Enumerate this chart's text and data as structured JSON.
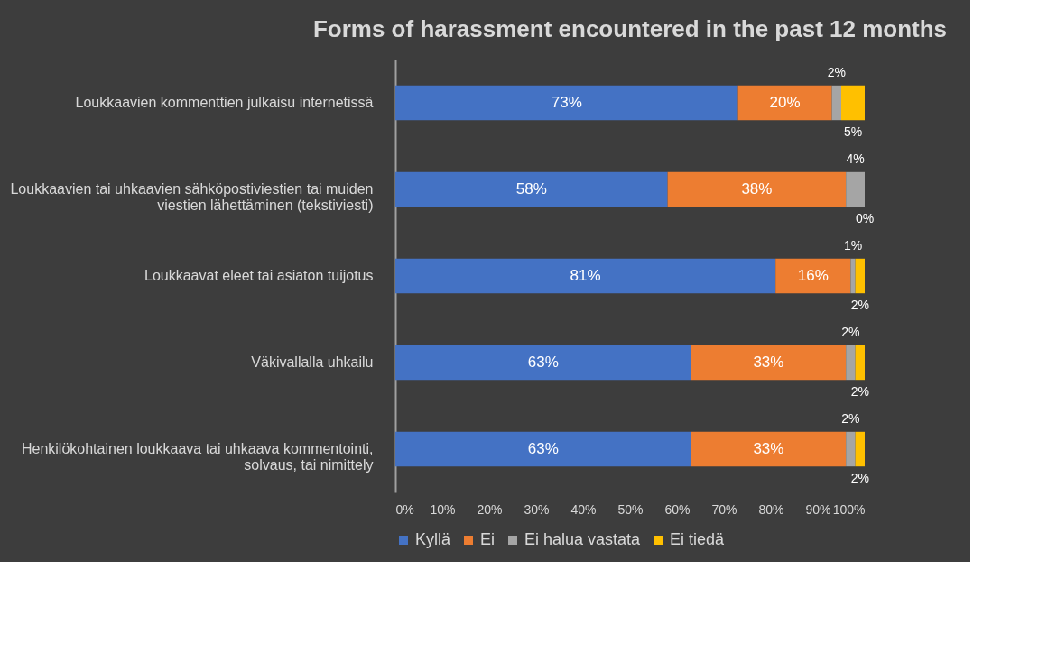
{
  "chart_data": {
    "type": "bar",
    "orientation": "horizontal",
    "stacked": true,
    "title": "Forms of harassment encountered in the past 12 months",
    "categories": [
      "Loukkaavien kommenttien julkaisu internetissä",
      "Loukkaavien tai uhkaavien sähköpostiviestien tai muiden viestien lähettäminen (tekstiviesti)",
      "Loukkaavat eleet tai asiaton tuijotus",
      "Väkivallalla uhkailu",
      "Henkilökohtainen loukkaava tai uhkaava kommentointi, solvaus, tai nimittely"
    ],
    "series": [
      {
        "name": "Kyllä",
        "color": "#4472c4",
        "values": [
          73,
          58,
          81,
          63,
          63
        ]
      },
      {
        "name": "Ei",
        "color": "#ed7d31",
        "values": [
          20,
          38,
          16,
          33,
          33
        ]
      },
      {
        "name": "Ei halua vastata",
        "color": "#a5a5a5",
        "values": [
          2,
          4,
          1,
          2,
          2
        ]
      },
      {
        "name": "Ei tiedä",
        "color": "#ffc000",
        "values": [
          5,
          0,
          2,
          2,
          2
        ]
      }
    ],
    "value_labels": [
      [
        "73%",
        "58%",
        "81%",
        "63%",
        "63%"
      ],
      [
        "20%",
        "38%",
        "16%",
        "33%",
        "33%"
      ],
      [
        "2%",
        "4%",
        "1%",
        "2%",
        "2%"
      ],
      [
        "5%",
        "0%",
        "2%",
        "2%",
        "2%"
      ]
    ],
    "xlim": [
      0,
      100
    ],
    "xticks": [
      {
        "value": 0,
        "label": "0%"
      },
      {
        "value": 10,
        "label": "10%"
      },
      {
        "value": 20,
        "label": "20%"
      },
      {
        "value": 30,
        "label": "30%"
      },
      {
        "value": 40,
        "label": "40%"
      },
      {
        "value": 50,
        "label": "50%"
      },
      {
        "value": 60,
        "label": "60%"
      },
      {
        "value": 70,
        "label": "70%"
      },
      {
        "value": 80,
        "label": "80%"
      },
      {
        "value": 90,
        "label": "90%"
      },
      {
        "value": 100,
        "label": "100%"
      }
    ],
    "grid": false,
    "legend": "bottom"
  }
}
